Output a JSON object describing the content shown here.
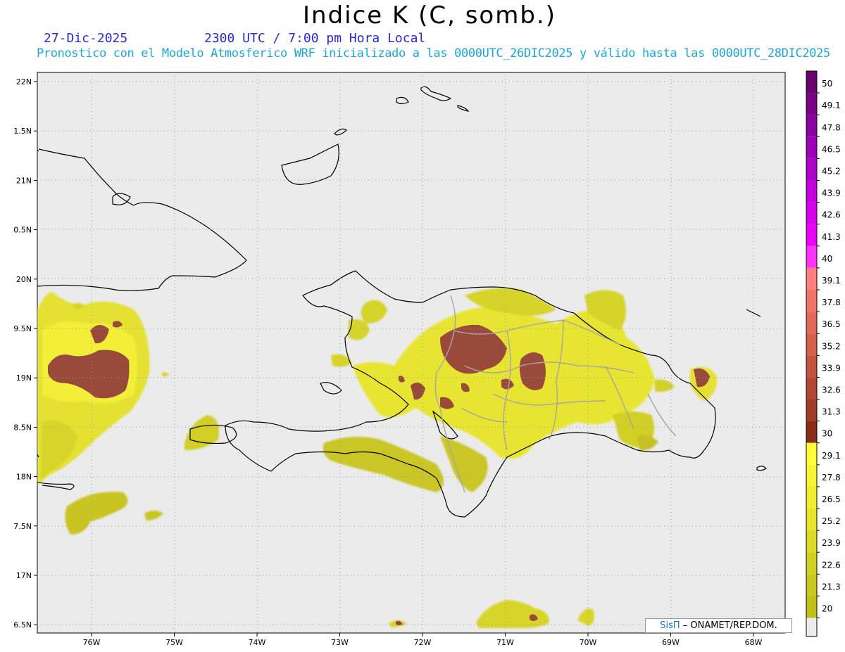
{
  "title": "Indice K (C, somb.)",
  "date": "27-Dic-2025",
  "time": "2300 UTC / 7:00 pm Hora Local",
  "subtitle": "Pronostico con el Modelo Atmosferico WRF inicializado a las 0000UTC_26DIC2025 y válido hasta las  0000UTC_28DIC2025",
  "credit": {
    "logo_text": "SisΠ",
    "text": " – ONAMET/REP.DOM."
  },
  "lat_labels": [
    "22N",
    "1.5N",
    "21N",
    "0.5N",
    "20N",
    "9.5N",
    "19N",
    "8.5N",
    "18N",
    "7.5N",
    "17N",
    "6.5N"
  ],
  "lon_labels": [
    "76W",
    "75W",
    "74W",
    "73W",
    "72W",
    "71W",
    "70W",
    "69W",
    "68W"
  ],
  "colorbar": {
    "labels": [
      "50",
      "49.1",
      "47.8",
      "46.5",
      "45.2",
      "43.9",
      "42.6",
      "41.3",
      "40",
      "39.1",
      "37.8",
      "36.5",
      "35.2",
      "33.9",
      "32.6",
      "31.3",
      "30",
      "29.1",
      "27.8",
      "26.5",
      "25.2",
      "23.9",
      "22.6",
      "21.3",
      "20"
    ],
    "colors": [
      "#6a0070",
      "#7a0088",
      "#8c00a0",
      "#9e00b8",
      "#b000cc",
      "#c400dc",
      "#d800ec",
      "#ec00fa",
      "#ff33ff",
      "#ff8080",
      "#f27468",
      "#e26a5a",
      "#d4604c",
      "#c45440",
      "#b44834",
      "#a03c28",
      "#8a2e18",
      "#ffff33",
      "#f8f430",
      "#f0ec2c",
      "#e8e428",
      "#dcda24",
      "#d0d020",
      "#c8c81c",
      "#c0c018"
    ],
    "colors_note_bottom": "#ececec"
  },
  "colors": {
    "ocean": "#ebebeb",
    "coast": "#000000",
    "border": "#a6a6a6",
    "grid": "#9a9a9a"
  }
}
